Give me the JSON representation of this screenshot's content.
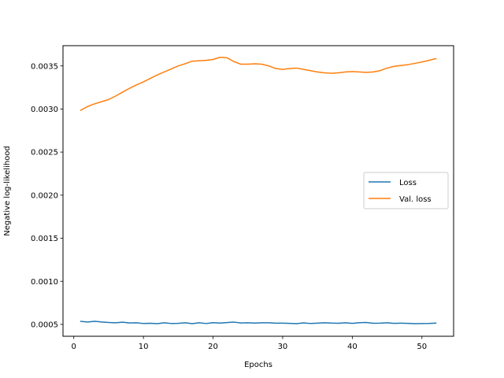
{
  "chart_data": {
    "type": "line",
    "title": "",
    "xlabel": "Epochs",
    "ylabel": "Negative log-likelihood",
    "xlim": [
      -1.55,
      54.55
    ],
    "ylim": [
      0.000362,
      0.003735
    ],
    "xticks": [
      0,
      10,
      20,
      30,
      40,
      50
    ],
    "xtick_labels": [
      "0",
      "10",
      "20",
      "30",
      "40",
      "50"
    ],
    "yticks": [
      0.0005,
      0.001,
      0.0015,
      0.002,
      0.0025,
      0.003,
      0.0035
    ],
    "ytick_labels": [
      "0.0005",
      "0.0010",
      "0.0015",
      "0.0020",
      "0.0025",
      "0.0030",
      "0.0035"
    ],
    "grid": false,
    "legend_position": "center-right",
    "x": [
      1,
      2,
      3,
      4,
      5,
      6,
      7,
      8,
      9,
      10,
      11,
      12,
      13,
      14,
      15,
      16,
      17,
      18,
      19,
      20,
      21,
      22,
      23,
      24,
      25,
      26,
      27,
      28,
      29,
      30,
      31,
      32,
      33,
      34,
      35,
      36,
      37,
      38,
      39,
      40,
      41,
      42,
      43,
      44,
      45,
      46,
      47,
      48,
      49,
      50,
      51,
      52
    ],
    "series": [
      {
        "name": "Loss",
        "color": "#1f77b4",
        "values": [
          0.000535,
          0.000528,
          0.000536,
          0.000528,
          0.000522,
          0.000518,
          0.000525,
          0.000516,
          0.000518,
          0.00051,
          0.000513,
          0.000508,
          0.000518,
          0.00051,
          0.000512,
          0.000518,
          0.000508,
          0.000518,
          0.00051,
          0.00052,
          0.000515,
          0.000521,
          0.000526,
          0.000516,
          0.000518,
          0.000515,
          0.000518,
          0.000518,
          0.000514,
          0.000514,
          0.000512,
          0.000508,
          0.000517,
          0.00051,
          0.000514,
          0.000519,
          0.000515,
          0.000513,
          0.000518,
          0.000512,
          0.00052,
          0.000522,
          0.000513,
          0.000514,
          0.000518,
          0.000512,
          0.000514,
          0.000512,
          0.000508,
          0.000509,
          0.00051,
          0.000515
        ]
      },
      {
        "name": "Val. loss",
        "color": "#ff7f0e",
        "values": [
          0.002985,
          0.00303,
          0.00306,
          0.003085,
          0.00311,
          0.00315,
          0.003195,
          0.00324,
          0.00328,
          0.003315,
          0.003355,
          0.003395,
          0.00343,
          0.003465,
          0.0035,
          0.003525,
          0.003555,
          0.00356,
          0.003565,
          0.003575,
          0.0036,
          0.003595,
          0.00355,
          0.00352,
          0.00352,
          0.003525,
          0.00352,
          0.0035,
          0.00347,
          0.00346,
          0.00347,
          0.003475,
          0.00346,
          0.003445,
          0.00343,
          0.00342,
          0.003415,
          0.00342,
          0.00343,
          0.003435,
          0.00343,
          0.003425,
          0.00343,
          0.003445,
          0.003475,
          0.003495,
          0.003505,
          0.003515,
          0.00353,
          0.003545,
          0.003565,
          0.003585
        ]
      }
    ]
  }
}
